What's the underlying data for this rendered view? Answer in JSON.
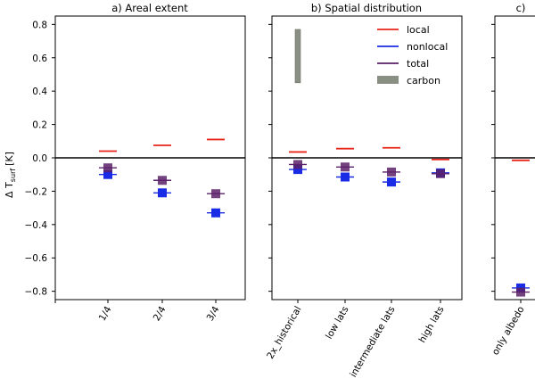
{
  "chart_data": {
    "type": "scatter",
    "ylabel": "Δ T_surf [K]",
    "ylabel_main": "Δ T",
    "ylabel_sub": "surf",
    "ylabel_unit": "[K]",
    "ylim": [
      -0.85,
      0.85
    ],
    "yticks": [
      -0.8,
      -0.6,
      -0.4,
      -0.2,
      0.0,
      0.2,
      0.4,
      0.6,
      0.8
    ],
    "ytick_labels": [
      "−0.8",
      "−0.6",
      "−0.4",
      "−0.2",
      "0.0",
      "0.2",
      "0.4",
      "0.6",
      "0.8"
    ],
    "zero_line": 0.0,
    "colors": {
      "local": "#e8251b",
      "nonlocal": "#1a2be6",
      "total": "#5a2168",
      "carbon": "#8a8f84",
      "axis": "#000000"
    },
    "legend": {
      "position": "top-right of panel b",
      "entries": [
        {
          "name": "local",
          "marker": "line",
          "color": "#e8251b"
        },
        {
          "name": "nonlocal",
          "marker": "line",
          "color": "#1a2be6"
        },
        {
          "name": "total",
          "marker": "line",
          "color": "#5a2168"
        },
        {
          "name": "carbon",
          "marker": "patch",
          "color": "#8a8f84"
        }
      ]
    },
    "panels": [
      {
        "title": "a) Areal extent",
        "categories": [
          "1/4",
          "2/4",
          "3/4"
        ],
        "series": [
          {
            "name": "local",
            "values": [
              0.04,
              0.075,
              0.11
            ]
          },
          {
            "name": "nonlocal",
            "values": [
              -0.1,
              -0.21,
              -0.33
            ]
          },
          {
            "name": "total",
            "values": [
              -0.06,
              -0.135,
              -0.215
            ]
          }
        ]
      },
      {
        "title": "b) Spatial distribution",
        "categories": [
          "2x_historical",
          "low lats",
          "intermediate lats",
          "high lats"
        ],
        "series": [
          {
            "name": "local",
            "values": [
              0.035,
              0.055,
              0.06,
              -0.01
            ]
          },
          {
            "name": "nonlocal",
            "values": [
              -0.07,
              -0.115,
              -0.145,
              -0.09
            ]
          },
          {
            "name": "total",
            "values": [
              -0.04,
              -0.055,
              -0.085,
              -0.095
            ]
          }
        ],
        "carbon_bar": {
          "category": "2x_historical",
          "range": [
            0.45,
            0.77
          ]
        }
      },
      {
        "title": "c)",
        "categories": [
          "only albedo"
        ],
        "series": [
          {
            "name": "local",
            "values": [
              -0.015
            ]
          },
          {
            "name": "nonlocal",
            "values": [
              -0.78
            ]
          },
          {
            "name": "total",
            "values": [
              -0.805
            ]
          }
        ]
      }
    ]
  }
}
